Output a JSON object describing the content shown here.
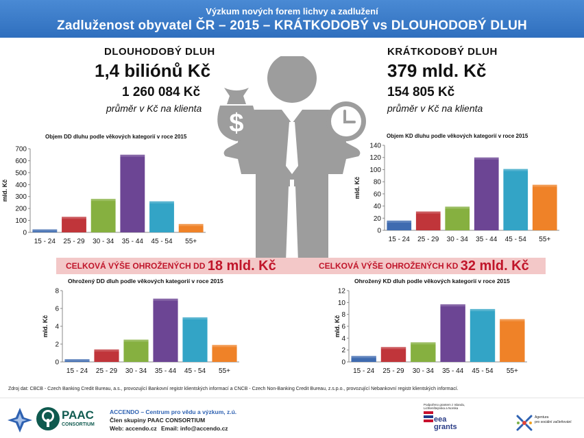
{
  "header": {
    "subtitle": "Výzkum nových forem lichvy a zadlužení",
    "title": "Zadluženost obyvatel ČR – 2015 – KRÁTKODOBÝ vs DLOUHODOBÝ DLUH"
  },
  "long_term": {
    "label": "DLOUHODOBÝ  DLUH",
    "total": "1,4 biliónů Kč",
    "average": "1 260 084 Kč",
    "average_note": "průměr v Kč na klienta"
  },
  "short_term": {
    "label": "KRÁTKODOBÝ  DLUH",
    "total": "379 mld. Kč",
    "average": "154 805 Kč",
    "average_note": "průměr v Kč na klienta"
  },
  "endangered": {
    "dd_label": "CELKOVÁ VÝŠE OHROŽENÝCH DD",
    "dd_value": "18 mld. Kč",
    "kd_label": "CELKOVÁ VÝŠE OHROŽENÝCH KD",
    "kd_value": "32 mld. Kč"
  },
  "icons": {
    "figure": "businessman-icon",
    "left": "money-bag-icon",
    "right": "clock-icon"
  },
  "colors": [
    "#3f6bb0",
    "#c0353a",
    "#86b040",
    "#6c4594",
    "#33a4c6",
    "#ef8228"
  ],
  "chart_data": [
    {
      "type": "bar",
      "title": "Objem DD dluhu podle věkových kategorií v roce 2015",
      "ylabel": "mld. Kč",
      "categories": [
        "15 - 24",
        "25 - 29",
        "30 - 34",
        "35 - 44",
        "45 - 54",
        "55+"
      ],
      "values": [
        25,
        130,
        280,
        650,
        260,
        70
      ],
      "ylim": [
        0,
        700
      ],
      "yticks": [
        0,
        100,
        200,
        300,
        400,
        500,
        600,
        700
      ],
      "grid": false,
      "legend": "none"
    },
    {
      "type": "bar",
      "title": "Objem KD dluhu podle věkových kategorií v roce 2015",
      "ylabel": "mld. Kč",
      "categories": [
        "15 - 24",
        "25 - 29",
        "30 - 34",
        "35 - 44",
        "45 - 54",
        "55+"
      ],
      "values": [
        16,
        31,
        39,
        120,
        101,
        75
      ],
      "ylim": [
        0,
        140
      ],
      "yticks": [
        0,
        20,
        40,
        60,
        80,
        100,
        120,
        140
      ],
      "grid": false,
      "legend": "none"
    },
    {
      "type": "bar",
      "title": "Ohrožený DD dluh podle věkových kategorií v roce 2015",
      "ylabel": "mld. Kč",
      "categories": [
        "15 - 24",
        "25 - 29",
        "30 - 34",
        "35 - 44",
        "45 - 54",
        "55+"
      ],
      "values": [
        0.3,
        1.4,
        2.5,
        7.1,
        5.0,
        1.9
      ],
      "ylim": [
        0,
        8
      ],
      "yticks": [
        0,
        2,
        4,
        6,
        8
      ],
      "grid": false,
      "legend": "none"
    },
    {
      "type": "bar",
      "title": "Ohrožený KD dluh podle věkových kategorií v roce 2015",
      "ylabel": "mld. Kč",
      "categories": [
        "15 - 24",
        "25 - 29",
        "30 - 34",
        "35 - 44",
        "45 - 54",
        "55+"
      ],
      "values": [
        1.0,
        2.5,
        3.3,
        9.7,
        8.9,
        7.2
      ],
      "ylim": [
        0,
        12
      ],
      "yticks": [
        0,
        2,
        4,
        6,
        8,
        10,
        12
      ],
      "grid": false,
      "legend": "none"
    }
  ],
  "source": "Zdroj dat: CBCB - Czech Banking Credit Bureau, a.s., provozující Bankovní registr klientských informací a CNCB - Czech Non-Banking Credit Bureau, z.s.p.o., provozující Nebankovní registr klientských informací.",
  "footer": {
    "logo_text": "PAAC",
    "logo_sub": "CONSORTIUM",
    "org_line": "ACCENDO – Centrum pro vědu a výzkum, z.ú.",
    "member_line": "Člen skupiny PAAC CONSORTIUM",
    "web_label": "Web: accendo.cz",
    "email_label": "Email: info@accendo.cz",
    "grant_note_1": "Podpořeno grantem z Islandu,",
    "grant_note_2": "Lichtenštejnska a Norska",
    "eea_1": "eea",
    "eea_2": "grants",
    "agency_1": "Agentura",
    "agency_2": "pro sociální začleňování"
  }
}
